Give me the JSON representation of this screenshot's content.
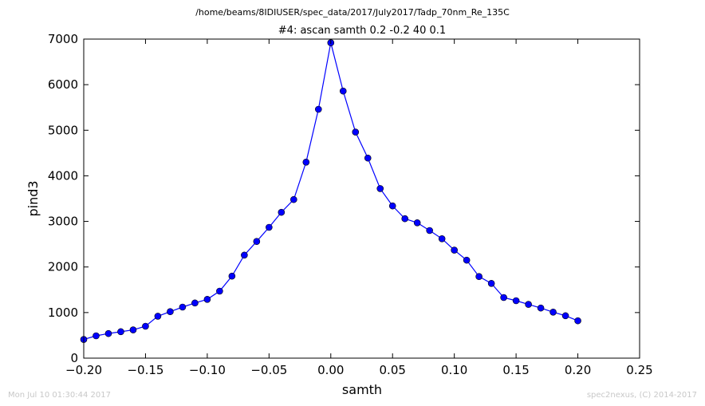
{
  "page": {
    "suptitle": "/home/beams/8IDIUSER/spec_data/2017/July2017/Tadp_70nm_Re_135C",
    "timestamp": "Mon Jul 10 01:30:44 2017",
    "credit": "spec2nexus, (C) 2014-2017"
  },
  "chart_data": {
    "type": "line",
    "title": "#4: ascan  samth 0.2 -0.2  40 0.1",
    "xlabel": "samth",
    "ylabel": "pind3",
    "xlim": [
      -0.2,
      0.25
    ],
    "ylim": [
      0,
      7000
    ],
    "xticks": [
      -0.2,
      -0.15,
      -0.1,
      -0.05,
      0.0,
      0.05,
      0.1,
      0.15,
      0.2,
      0.25
    ],
    "xtick_labels": [
      "−0.20",
      "−0.15",
      "−0.10",
      "−0.05",
      "0.00",
      "0.05",
      "0.10",
      "0.15",
      "0.20",
      "0.25"
    ],
    "yticks": [
      0,
      1000,
      2000,
      3000,
      4000,
      5000,
      6000,
      7000
    ],
    "ytick_labels": [
      "0",
      "1000",
      "2000",
      "3000",
      "4000",
      "5000",
      "6000",
      "7000"
    ],
    "grid": false,
    "series": [
      {
        "color": "#0000ff",
        "marker": "circle",
        "x": [
          -0.2,
          -0.19,
          -0.18,
          -0.17,
          -0.16,
          -0.15,
          -0.14,
          -0.13,
          -0.12,
          -0.11,
          -0.1,
          -0.09,
          -0.08,
          -0.07,
          -0.06,
          -0.05,
          -0.04,
          -0.03,
          -0.02,
          -0.01,
          0.0,
          0.01,
          0.02,
          0.03,
          0.04,
          0.05,
          0.06,
          0.07,
          0.08,
          0.09,
          0.1,
          0.11,
          0.12,
          0.13,
          0.14,
          0.15,
          0.16,
          0.17,
          0.18,
          0.19,
          0.2
        ],
        "y": [
          410,
          490,
          540,
          580,
          620,
          700,
          920,
          1020,
          1120,
          1210,
          1290,
          1470,
          1800,
          2260,
          2560,
          2870,
          3200,
          3480,
          4300,
          5460,
          6920,
          5860,
          4960,
          4390,
          3720,
          3340,
          3060,
          2970,
          2800,
          2620,
          2370,
          2150,
          1790,
          1640,
          1330,
          1260,
          1180,
          1100,
          1010,
          930,
          820
        ]
      }
    ]
  }
}
